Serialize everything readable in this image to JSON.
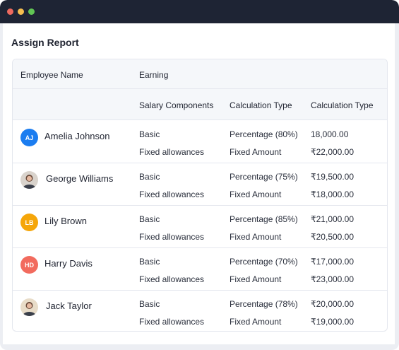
{
  "window": {
    "controls": [
      "close",
      "minimize",
      "maximize"
    ]
  },
  "page": {
    "title": "Assign Report"
  },
  "table": {
    "headers": {
      "employee_name": "Employee Name",
      "earning": "Earning",
      "salary_components": "Salary Components",
      "calculation_type_1": "Calculation Type",
      "calculation_type_2": "Calculation Type"
    },
    "rows": [
      {
        "name": "Amelia Johnson",
        "initials": "AJ",
        "avatar_color": "#1b7df0",
        "avatar_type": "initials",
        "lines": [
          {
            "component": "Basic",
            "calc": "Percentage (80%)",
            "amount": "18,000.00"
          },
          {
            "component": "Fixed allowances",
            "calc": "Fixed Amount",
            "amount": "₹22,000.00"
          }
        ]
      },
      {
        "name": "George Williams",
        "initials": "",
        "avatar_color": "#d9d3cc",
        "avatar_type": "photo",
        "lines": [
          {
            "component": "Basic",
            "calc": "Percentage (75%)",
            "amount": "₹19,500.00"
          },
          {
            "component": "Fixed allowances",
            "calc": "Fixed Amount",
            "amount": "₹18,000.00"
          }
        ]
      },
      {
        "name": "Lily Brown",
        "initials": "LB",
        "avatar_color": "#f5a60a",
        "avatar_type": "initials",
        "lines": [
          {
            "component": "Basic",
            "calc": "Percentage (85%)",
            "amount": "₹21,000.00"
          },
          {
            "component": "Fixed allowances",
            "calc": "Fixed Amount",
            "amount": "₹20,500.00"
          }
        ]
      },
      {
        "name": "Harry Davis",
        "initials": "HD",
        "avatar_color": "#f26b5e",
        "avatar_type": "initials",
        "lines": [
          {
            "component": "Basic",
            "calc": "Percentage (70%)",
            "amount": "₹17,000.00"
          },
          {
            "component": "Fixed allowances",
            "calc": "Fixed Amount",
            "amount": "₹23,000.00"
          }
        ]
      },
      {
        "name": "Jack Taylor",
        "initials": "",
        "avatar_color": "#e8dcc8",
        "avatar_type": "photo",
        "lines": [
          {
            "component": "Basic",
            "calc": "Percentage (78%)",
            "amount": "₹20,000.00"
          },
          {
            "component": "Fixed allowances",
            "calc": "Fixed Amount",
            "amount": "₹19,000.00"
          }
        ]
      }
    ]
  },
  "colors": {
    "titlebar": "#1e2434",
    "header_bg": "#f5f7fa",
    "border": "#e4e7ee"
  }
}
